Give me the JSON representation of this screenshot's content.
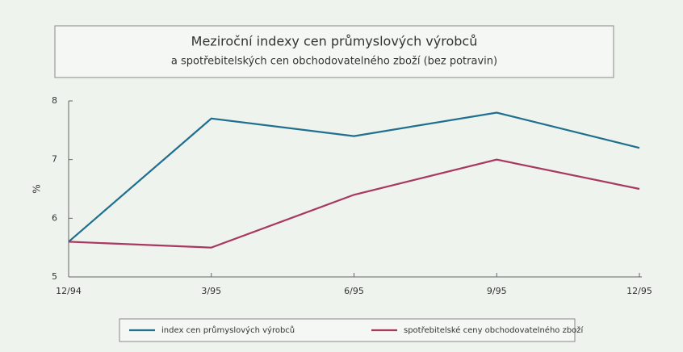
{
  "chart_data": {
    "type": "line",
    "title": "Meziroční indexy cen průmyslových výrobců",
    "subtitle": "a spotřebitelských cen obchodovatelného zboží (bez potravin)",
    "y_label": "%",
    "categories": [
      "12/94",
      "3/95",
      "6/95",
      "9/95",
      "12/95"
    ],
    "series": [
      {
        "name": "index cen průmyslových výrobců",
        "color": "#1f6f8f",
        "values": [
          5.6,
          7.7,
          7.4,
          7.8,
          7.2
        ]
      },
      {
        "name": "spotřebitelské ceny obchodovatelného zboží",
        "color": "#a8385f",
        "values": [
          5.6,
          5.5,
          6.4,
          7.0,
          6.5
        ]
      }
    ],
    "ylim": [
      5,
      8
    ],
    "yticks": [
      5,
      6,
      7,
      8
    ],
    "grid": false
  }
}
